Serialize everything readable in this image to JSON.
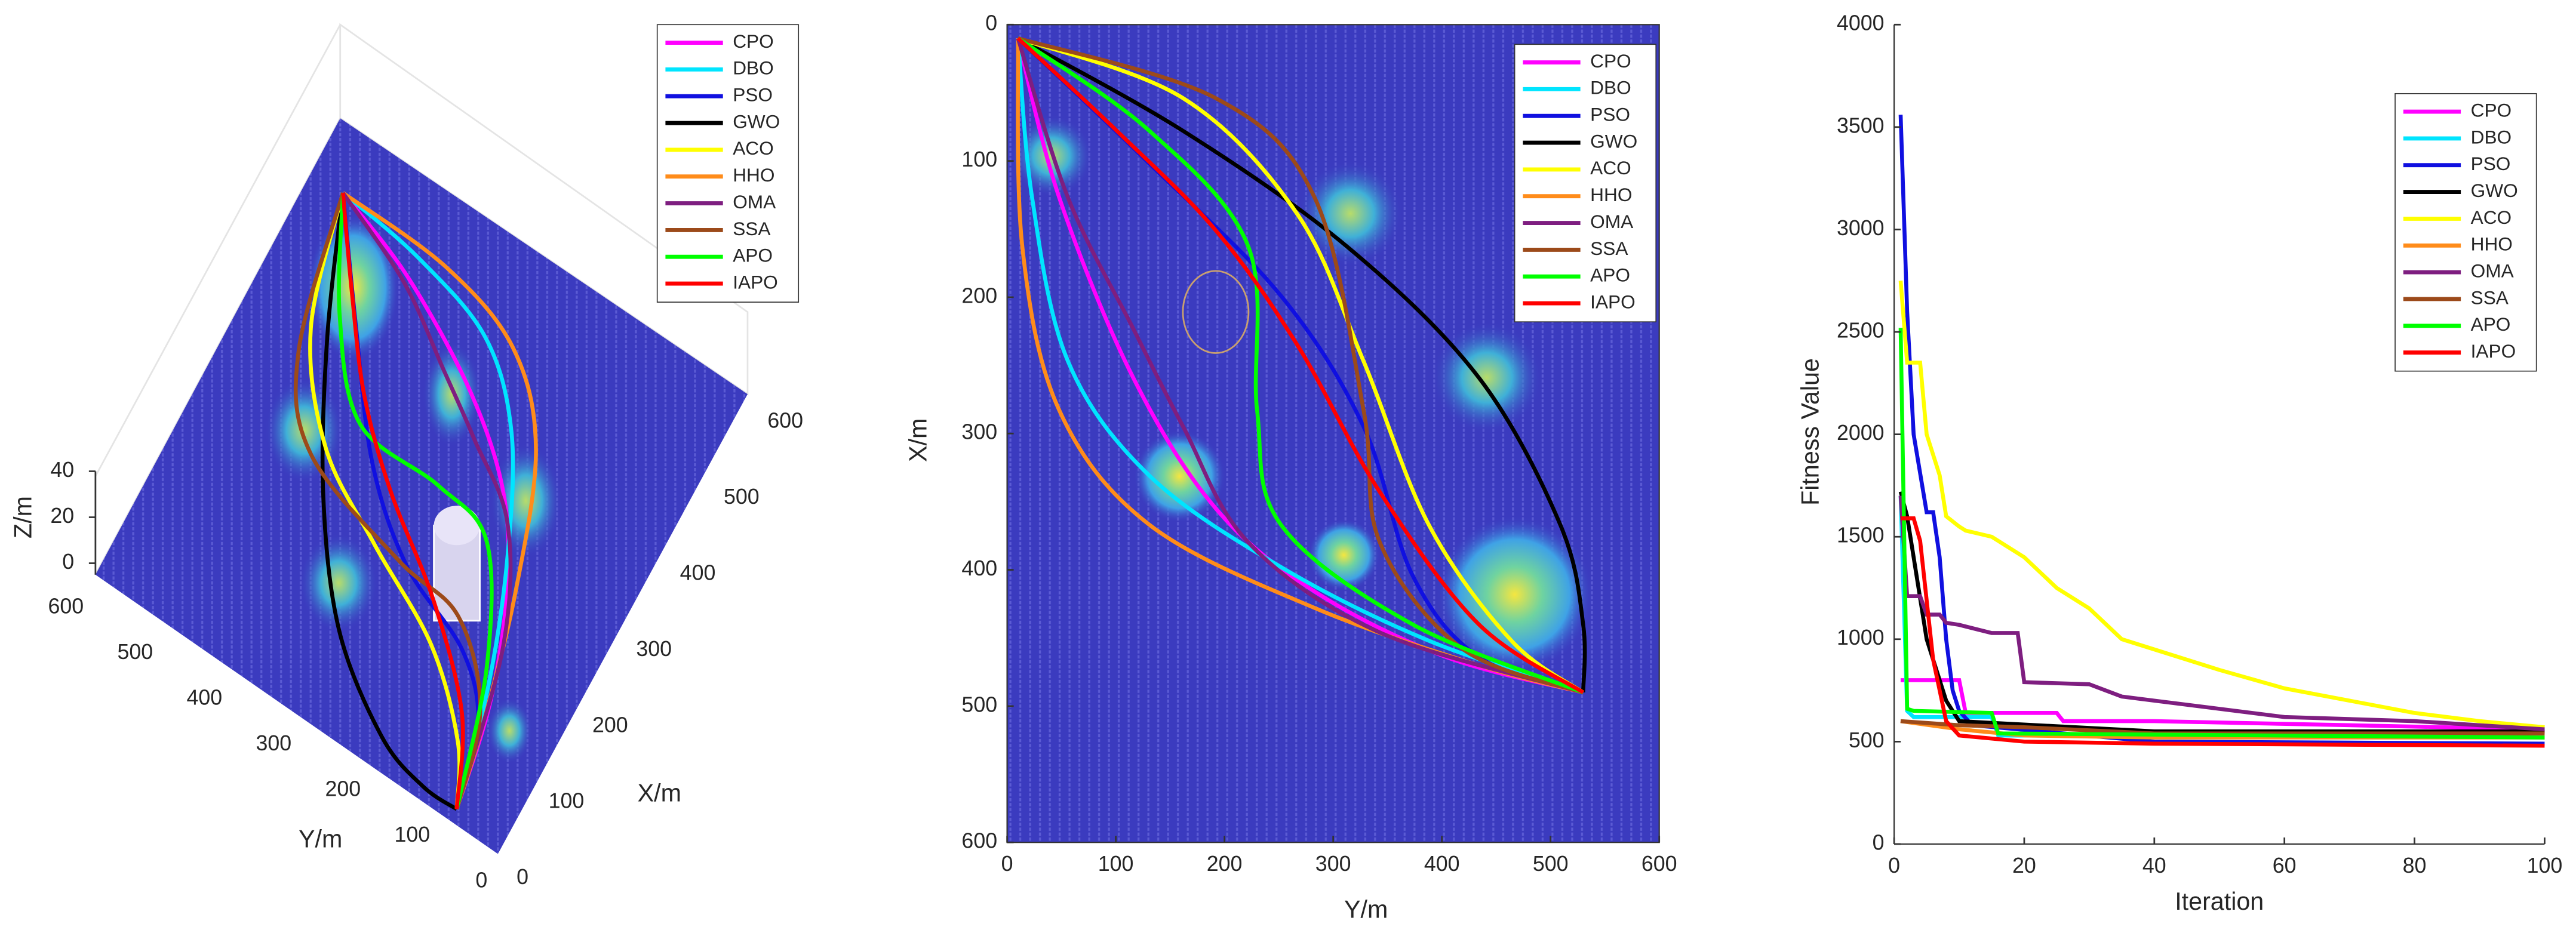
{
  "chart_data": [
    {
      "type": "surface3d",
      "xlabel": "X/m",
      "ylabel": "Y/m",
      "zlabel": "Z/m",
      "xlim": [
        0,
        600
      ],
      "ylim": [
        0,
        600
      ],
      "zlim": [
        0,
        40
      ],
      "xticks": [
        0,
        100,
        200,
        300,
        400,
        500,
        600
      ],
      "yticks": [
        0,
        100,
        200,
        300,
        400,
        500,
        600
      ],
      "zticks": [
        0,
        20,
        40
      ],
      "series": [
        {
          "name": "CPO",
          "color": "#ff00ff"
        },
        {
          "name": "DBO",
          "color": "#00e5ff"
        },
        {
          "name": "PSO",
          "color": "#1010e0"
        },
        {
          "name": "GWO",
          "color": "#000000"
        },
        {
          "name": "ACO",
          "color": "#ffff00"
        },
        {
          "name": "HHO",
          "color": "#ff8c1a"
        },
        {
          "name": "OMA",
          "color": "#7e1e80"
        },
        {
          "name": "SSA",
          "color": "#9c4a1a"
        },
        {
          "name": "APO",
          "color": "#00ff00"
        },
        {
          "name": "IAPO",
          "color": "#ff0000"
        }
      ]
    },
    {
      "type": "path2d",
      "xlabel": "Y/m",
      "ylabel": "X/m",
      "xlim": [
        0,
        600
      ],
      "ylim": [
        0,
        600
      ],
      "y_inverted": true,
      "xticks": [
        0,
        100,
        200,
        300,
        400,
        500,
        600
      ],
      "yticks": [
        0,
        100,
        200,
        300,
        400,
        500,
        600
      ],
      "series": [
        {
          "name": "CPO",
          "color": "#ff00ff",
          "x": [
            10,
            48,
            116,
            192,
            283,
            404,
            530
          ],
          "y": [
            10,
            127,
            259,
            355,
            416,
            464,
            490
          ]
        },
        {
          "name": "DBO",
          "color": "#00e5ff",
          "x": [
            10,
            23,
            56,
            131,
            252,
            388,
            530
          ],
          "y": [
            10,
            127,
            247,
            331,
            398,
            452,
            490
          ]
        },
        {
          "name": "PSO",
          "color": "#1010e0",
          "x": [
            10,
            131,
            252,
            328,
            373,
            434,
            530
          ],
          "y": [
            10,
            102,
            199,
            295,
            404,
            464,
            490
          ]
        },
        {
          "name": "GWO",
          "color": "#000000",
          "x": [
            10,
            162,
            313,
            434,
            509,
            530,
            530
          ],
          "y": [
            10,
            78,
            163,
            259,
            367,
            440,
            490
          ]
        },
        {
          "name": "ACO",
          "color": "#ffff00",
          "x": [
            10,
            162,
            267,
            328,
            388,
            464,
            530
          ],
          "y": [
            10,
            54,
            139,
            247,
            367,
            452,
            490
          ]
        },
        {
          "name": "HHO",
          "color": "#ff8c1a",
          "x": [
            10,
            14,
            48,
            131,
            283,
            434,
            530
          ],
          "y": [
            10,
            163,
            283,
            367,
            428,
            470,
            490
          ]
        },
        {
          "name": "OMA",
          "color": "#7e1e80",
          "x": [
            10,
            56,
            116,
            162,
            222,
            343,
            530
          ],
          "y": [
            10,
            127,
            223,
            295,
            380,
            446,
            490
          ]
        },
        {
          "name": "SSA",
          "color": "#9c4a1a",
          "x": [
            10,
            192,
            283,
            328,
            343,
            419,
            530
          ],
          "y": [
            10,
            54,
            127,
            283,
            380,
            458,
            490
          ]
        },
        {
          "name": "APO",
          "color": "#00ff00",
          "x": [
            10,
            131,
            222,
            230,
            252,
            373,
            530
          ],
          "y": [
            10,
            78,
            163,
            283,
            367,
            440,
            490
          ]
        },
        {
          "name": "IAPO",
          "color": "#ff0000",
          "x": [
            10,
            101,
            192,
            267,
            343,
            434,
            530
          ],
          "y": [
            10,
            78,
            151,
            235,
            343,
            440,
            490
          ]
        }
      ]
    },
    {
      "type": "line",
      "xlabel": "Iteration",
      "ylabel": "Fitness Value",
      "xlim": [
        0,
        100
      ],
      "ylim": [
        0,
        4000
      ],
      "xticks": [
        0,
        20,
        40,
        60,
        80,
        100
      ],
      "yticks": [
        0,
        500,
        1000,
        1500,
        2000,
        2500,
        3000,
        3500,
        4000
      ],
      "series": [
        {
          "name": "CPO",
          "color": "#ff00ff",
          "x": [
            1,
            10,
            11,
            25,
            26,
            40,
            100
          ],
          "values": [
            800,
            800,
            640,
            640,
            600,
            600,
            560
          ]
        },
        {
          "name": "DBO",
          "color": "#00e5ff",
          "x": [
            1,
            2,
            3,
            15,
            16,
            100
          ],
          "values": [
            1700,
            650,
            620,
            620,
            530,
            520
          ]
        },
        {
          "name": "PSO",
          "color": "#1010e0",
          "x": [
            1,
            2,
            3,
            5,
            6,
            7,
            8,
            9,
            10,
            12,
            40,
            100
          ],
          "values": [
            3560,
            2600,
            2000,
            1620,
            1620,
            1400,
            1000,
            750,
            650,
            580,
            500,
            490
          ]
        },
        {
          "name": "GWO",
          "color": "#000000",
          "x": [
            1,
            2,
            4,
            5,
            7,
            8,
            10,
            40,
            100
          ],
          "values": [
            1720,
            1600,
            1200,
            1000,
            800,
            700,
            600,
            550,
            550
          ]
        },
        {
          "name": "ACO",
          "color": "#ffff00",
          "x": [
            1,
            2,
            4,
            5,
            7,
            8,
            10,
            11,
            15,
            20,
            25,
            30,
            35,
            40,
            50,
            60,
            70,
            80,
            90,
            100
          ],
          "values": [
            2750,
            2350,
            2350,
            2000,
            1800,
            1600,
            1550,
            1530,
            1500,
            1400,
            1250,
            1150,
            1000,
            950,
            850,
            760,
            700,
            640,
            600,
            570
          ]
        },
        {
          "name": "HHO",
          "color": "#ff8c1a",
          "x": [
            1,
            10,
            20,
            40,
            100
          ],
          "values": [
            600,
            560,
            530,
            520,
            520
          ]
        },
        {
          "name": "OMA",
          "color": "#7e1e80",
          "x": [
            1,
            2,
            4,
            5,
            7,
            8,
            10,
            15,
            19,
            20,
            30,
            35,
            40,
            60,
            80,
            100
          ],
          "values": [
            1700,
            1210,
            1210,
            1120,
            1120,
            1080,
            1070,
            1030,
            1030,
            790,
            780,
            720,
            700,
            620,
            600,
            560
          ]
        },
        {
          "name": "SSA",
          "color": "#9c4a1a",
          "x": [
            1,
            10,
            20,
            40,
            100
          ],
          "values": [
            600,
            580,
            570,
            540,
            540
          ]
        },
        {
          "name": "APO",
          "color": "#00ff00",
          "x": [
            1,
            2,
            3,
            15,
            16,
            100
          ],
          "values": [
            2520,
            660,
            650,
            640,
            540,
            520
          ]
        },
        {
          "name": "IAPO",
          "color": "#ff0000",
          "x": [
            1,
            3,
            4,
            6,
            8,
            10,
            20,
            40,
            100
          ],
          "values": [
            1590,
            1590,
            1480,
            900,
            600,
            530,
            500,
            490,
            480
          ]
        }
      ]
    }
  ]
}
